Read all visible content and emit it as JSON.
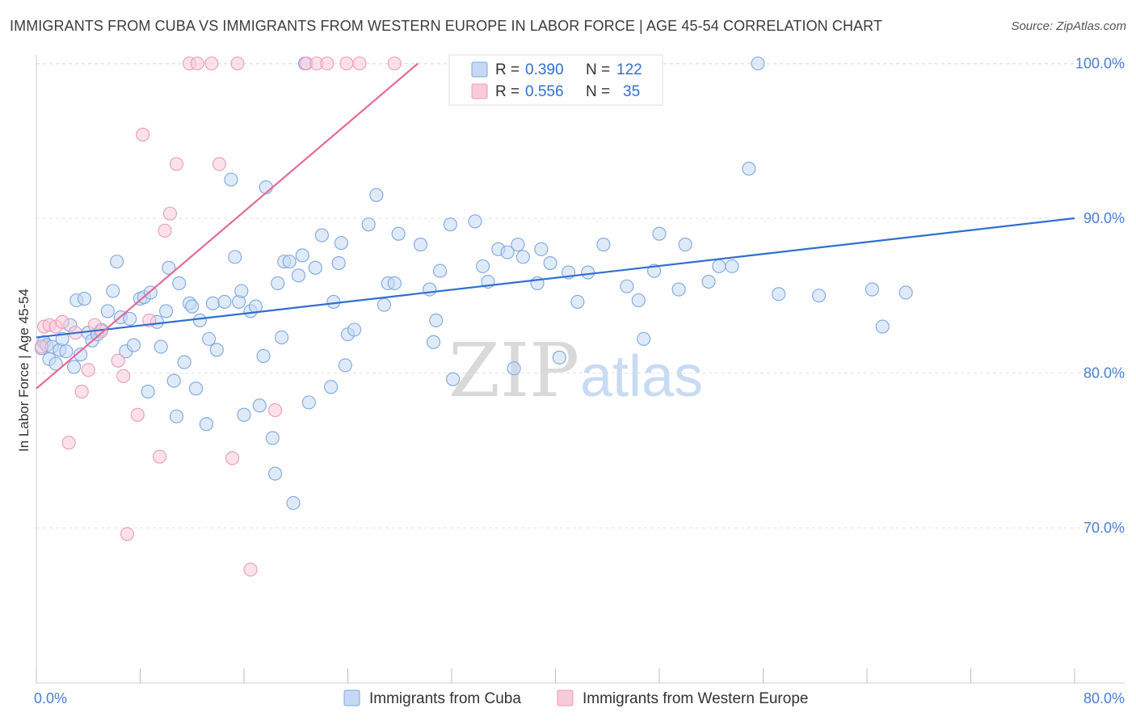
{
  "title": "IMMIGRANTS FROM CUBA VS IMMIGRANTS FROM WESTERN EUROPE IN LABOR FORCE | AGE 45-54 CORRELATION CHART",
  "source": "Source: ZipAtlas.com",
  "watermark": {
    "zip": "ZIP",
    "atlas": "atlas"
  },
  "colors": {
    "blue": "#4a86e8",
    "blue_fill": "#c5d9f4",
    "blue_line": "#2f6fd0",
    "pink": "#e8799f",
    "pink_fill": "#f7cbd9",
    "pink_line": "#e56a94",
    "tick_text": "#4a7fd4"
  },
  "legend": [
    {
      "r_label": "R =",
      "r_value": "0.390",
      "n_label": "N =",
      "n_value": "122"
    },
    {
      "r_label": "R =",
      "r_value": "0.556",
      "n_label": "N =",
      "n_value": "35"
    }
  ],
  "bottom_legend": [
    "Immigrants from Cuba",
    "Immigrants from Western Europe"
  ],
  "chart_data": {
    "type": "scatter",
    "title": "IMMIGRANTS FROM CUBA VS IMMIGRANTS FROM WESTERN EUROPE IN LABOR FORCE | AGE 45-54 CORRELATION CHART",
    "xlabel": "",
    "ylabel": "In Labor Force | Age 45-54",
    "xlim": [
      0,
      80
    ],
    "ylim": [
      60,
      101
    ],
    "x_tick_labels": [
      "0.0%",
      "80.0%"
    ],
    "y_ticks": [
      70,
      80,
      90,
      100
    ],
    "y_tick_labels": [
      "70.0%",
      "80.0%",
      "90.0%",
      "100.0%"
    ],
    "grid": true,
    "legend_position": "top-center",
    "series": [
      {
        "name": "Immigrants from Cuba",
        "r": 0.39,
        "n": 122,
        "trend": {
          "x": [
            0,
            80
          ],
          "y": [
            82.3,
            90.0
          ]
        },
        "points": [
          [
            0.4,
            81.6
          ],
          [
            0.6,
            82.0
          ],
          [
            0.8,
            81.8
          ],
          [
            1.0,
            80.9
          ],
          [
            1.2,
            81.7
          ],
          [
            1.5,
            80.6
          ],
          [
            1.8,
            81.5
          ],
          [
            2.0,
            82.2
          ],
          [
            2.3,
            81.4
          ],
          [
            2.6,
            83.1
          ],
          [
            2.9,
            80.4
          ],
          [
            3.1,
            84.7
          ],
          [
            3.4,
            81.2
          ],
          [
            3.7,
            84.8
          ],
          [
            4.0,
            82.6
          ],
          [
            4.3,
            82.1
          ],
          [
            4.7,
            82.5
          ],
          [
            5.0,
            82.8
          ],
          [
            5.5,
            84.0
          ],
          [
            5.9,
            85.3
          ],
          [
            6.2,
            87.2
          ],
          [
            6.5,
            83.6
          ],
          [
            6.9,
            81.4
          ],
          [
            7.2,
            83.5
          ],
          [
            7.5,
            81.8
          ],
          [
            8.0,
            84.8
          ],
          [
            8.3,
            84.9
          ],
          [
            8.6,
            78.8
          ],
          [
            8.8,
            85.2
          ],
          [
            9.3,
            83.3
          ],
          [
            9.6,
            81.7
          ],
          [
            10.0,
            84.0
          ],
          [
            10.2,
            86.8
          ],
          [
            10.6,
            79.5
          ],
          [
            10.8,
            77.2
          ],
          [
            11.0,
            85.8
          ],
          [
            11.4,
            80.7
          ],
          [
            11.8,
            84.5
          ],
          [
            12.0,
            84.3
          ],
          [
            12.3,
            79.0
          ],
          [
            12.6,
            83.4
          ],
          [
            13.1,
            76.7
          ],
          [
            13.3,
            82.2
          ],
          [
            13.6,
            84.5
          ],
          [
            13.9,
            81.5
          ],
          [
            14.5,
            84.6
          ],
          [
            15.0,
            92.5
          ],
          [
            15.3,
            87.5
          ],
          [
            15.6,
            84.6
          ],
          [
            15.8,
            85.3
          ],
          [
            16.0,
            77.3
          ],
          [
            16.5,
            84.0
          ],
          [
            16.9,
            84.3
          ],
          [
            17.2,
            77.9
          ],
          [
            17.5,
            81.1
          ],
          [
            17.7,
            92.0
          ],
          [
            18.2,
            75.8
          ],
          [
            18.4,
            73.5
          ],
          [
            18.6,
            85.8
          ],
          [
            18.9,
            82.3
          ],
          [
            19.1,
            87.2
          ],
          [
            19.5,
            87.2
          ],
          [
            19.8,
            71.6
          ],
          [
            20.2,
            86.3
          ],
          [
            20.5,
            87.6
          ],
          [
            20.7,
            100.0
          ],
          [
            21.0,
            78.1
          ],
          [
            21.5,
            86.8
          ],
          [
            22.0,
            88.9
          ],
          [
            22.7,
            79.1
          ],
          [
            22.9,
            84.6
          ],
          [
            23.3,
            87.1
          ],
          [
            23.5,
            88.4
          ],
          [
            23.8,
            80.5
          ],
          [
            24.0,
            82.5
          ],
          [
            24.5,
            82.8
          ],
          [
            25.6,
            89.6
          ],
          [
            26.2,
            91.5
          ],
          [
            26.8,
            84.4
          ],
          [
            27.1,
            85.8
          ],
          [
            27.6,
            85.8
          ],
          [
            27.9,
            89.0
          ],
          [
            29.6,
            88.3
          ],
          [
            30.3,
            85.4
          ],
          [
            30.6,
            82.0
          ],
          [
            30.8,
            83.4
          ],
          [
            31.1,
            86.6
          ],
          [
            31.9,
            89.6
          ],
          [
            32.1,
            79.6
          ],
          [
            33.8,
            89.8
          ],
          [
            34.4,
            86.9
          ],
          [
            34.8,
            85.9
          ],
          [
            35.6,
            88.0
          ],
          [
            36.3,
            87.8
          ],
          [
            36.8,
            80.3
          ],
          [
            37.1,
            88.3
          ],
          [
            37.5,
            87.5
          ],
          [
            38.6,
            85.8
          ],
          [
            38.9,
            88.0
          ],
          [
            39.6,
            87.1
          ],
          [
            40.3,
            81.0
          ],
          [
            41.0,
            86.5
          ],
          [
            41.7,
            84.6
          ],
          [
            42.5,
            86.5
          ],
          [
            43.7,
            88.3
          ],
          [
            45.5,
            85.6
          ],
          [
            46.4,
            84.7
          ],
          [
            46.8,
            82.2
          ],
          [
            47.6,
            86.6
          ],
          [
            48.0,
            89.0
          ],
          [
            49.5,
            85.4
          ],
          [
            50.0,
            88.3
          ],
          [
            51.8,
            85.9
          ],
          [
            52.6,
            86.9
          ],
          [
            53.6,
            86.9
          ],
          [
            54.9,
            93.2
          ],
          [
            55.6,
            100.0
          ],
          [
            57.2,
            85.1
          ],
          [
            60.3,
            85.0
          ],
          [
            64.4,
            85.4
          ],
          [
            65.2,
            83.0
          ],
          [
            67.0,
            85.2
          ]
        ]
      },
      {
        "name": "Immigrants from Western Europe",
        "r": 0.556,
        "n": 35,
        "trend": {
          "x": [
            0,
            29.4
          ],
          "y": [
            79.0,
            100.0
          ]
        },
        "points": [
          [
            0.4,
            81.7
          ],
          [
            0.6,
            83.0
          ],
          [
            1.0,
            83.1
          ],
          [
            1.5,
            83.0
          ],
          [
            2.0,
            83.3
          ],
          [
            2.5,
            75.5
          ],
          [
            3.0,
            82.6
          ],
          [
            3.5,
            78.8
          ],
          [
            4.0,
            80.2
          ],
          [
            4.5,
            83.1
          ],
          [
            5.0,
            82.7
          ],
          [
            6.3,
            80.8
          ],
          [
            6.7,
            79.8
          ],
          [
            7.0,
            69.6
          ],
          [
            7.8,
            77.3
          ],
          [
            8.2,
            95.4
          ],
          [
            8.7,
            83.4
          ],
          [
            9.5,
            74.6
          ],
          [
            9.9,
            89.2
          ],
          [
            10.3,
            90.3
          ],
          [
            10.8,
            93.5
          ],
          [
            11.8,
            100.0
          ],
          [
            12.4,
            100.0
          ],
          [
            13.5,
            100.0
          ],
          [
            14.1,
            93.5
          ],
          [
            15.1,
            74.5
          ],
          [
            15.5,
            100.0
          ],
          [
            16.5,
            67.3
          ],
          [
            18.4,
            77.6
          ],
          [
            20.8,
            100.0
          ],
          [
            21.6,
            100.0
          ],
          [
            22.4,
            100.0
          ],
          [
            23.9,
            100.0
          ],
          [
            24.9,
            100.0
          ],
          [
            27.6,
            100.0
          ]
        ]
      }
    ]
  }
}
